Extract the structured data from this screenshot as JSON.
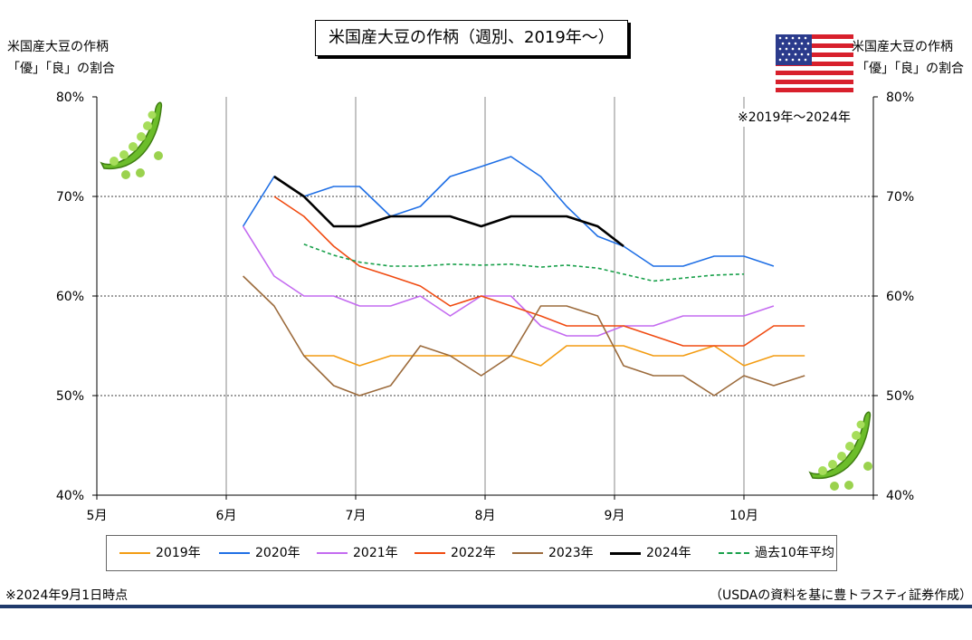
{
  "title": "米国産大豆の作柄（週別、2019年～）",
  "left_axis_label": [
    "米国産大豆の作柄",
    "「優」「良」の割合"
  ],
  "right_axis_label": [
    "米国産大豆の作柄",
    "「優」「良」の割合"
  ],
  "note_period": "※2019年～2024年",
  "footnote_left": "※2024年9月1日時点",
  "footnote_right": "（USDAの資料を基に豊トラスティ証券作成）",
  "colors": {
    "grid": "#000000",
    "month_grid": "#888888",
    "bottom_rule": "#1f3a6b"
  },
  "decorations": {
    "flag": "us-flag-icon",
    "pea_pods": [
      "pea-pod-icon",
      "pea-pod-icon"
    ]
  },
  "chart_data": {
    "type": "line",
    "ylim": [
      40,
      80
    ],
    "y_ticks": [
      "40%",
      "50%",
      "60%",
      "70%",
      "80%"
    ],
    "y_tick_values": [
      40,
      50,
      60,
      70,
      80
    ],
    "x_domain": [
      5,
      11
    ],
    "x_tick_labels": [
      "5月",
      "6月",
      "7月",
      "8月",
      "9月",
      "10月"
    ],
    "x_tick_values": [
      5,
      6,
      7,
      8,
      9,
      10
    ],
    "grid": true,
    "legend_position": "bottom",
    "series": [
      {
        "name": "2019年",
        "color": "#f39c12",
        "dash": false,
        "width": 1.6,
        "x": [
          6.6,
          6.83,
          7.03,
          7.27,
          7.5,
          7.73,
          7.97,
          8.2,
          8.43,
          8.63,
          8.87,
          9.07,
          9.3,
          9.53,
          9.77,
          10.0,
          10.23,
          10.47
        ],
        "y": [
          54,
          54,
          53,
          54,
          54,
          54,
          54,
          54,
          53,
          55,
          55,
          55,
          54,
          54,
          55,
          53,
          54,
          54
        ]
      },
      {
        "name": "2020年",
        "color": "#1f6fe5",
        "dash": false,
        "width": 1.6,
        "x": [
          6.13,
          6.37,
          6.6,
          6.83,
          7.03,
          7.27,
          7.5,
          7.73,
          7.97,
          8.2,
          8.43,
          8.63,
          8.87,
          9.07,
          9.3,
          9.53,
          9.77,
          10.0,
          10.23
        ],
        "y": [
          67,
          72,
          70,
          71,
          71,
          68,
          69,
          72,
          73,
          74,
          72,
          69,
          66,
          65,
          63,
          63,
          64,
          64,
          63
        ]
      },
      {
        "name": "2021年",
        "color": "#c46bf0",
        "dash": false,
        "width": 1.6,
        "x": [
          6.13,
          6.37,
          6.6,
          6.83,
          7.03,
          7.27,
          7.5,
          7.73,
          7.97,
          8.2,
          8.43,
          8.63,
          8.87,
          9.07,
          9.3,
          9.53,
          9.77,
          10.0,
          10.23
        ],
        "y": [
          67,
          62,
          60,
          60,
          59,
          59,
          60,
          58,
          60,
          60,
          57,
          56,
          56,
          57,
          57,
          58,
          58,
          58,
          59
        ]
      },
      {
        "name": "2022年",
        "color": "#f04a10",
        "dash": false,
        "width": 1.6,
        "x": [
          6.37,
          6.6,
          6.83,
          7.03,
          7.27,
          7.5,
          7.73,
          7.97,
          8.2,
          8.43,
          8.63,
          8.87,
          9.07,
          9.3,
          9.53,
          9.77,
          10.0,
          10.23,
          10.47
        ],
        "y": [
          70,
          68,
          65,
          63,
          62,
          61,
          59,
          60,
          59,
          58,
          57,
          57,
          57,
          56,
          55,
          55,
          55,
          57,
          57
        ]
      },
      {
        "name": "2023年",
        "color": "#9c6b3c",
        "dash": false,
        "width": 1.6,
        "x": [
          6.13,
          6.37,
          6.6,
          6.83,
          7.03,
          7.27,
          7.5,
          7.73,
          7.97,
          8.2,
          8.43,
          8.63,
          8.87,
          9.07,
          9.3,
          9.53,
          9.77,
          10.0,
          10.23,
          10.47
        ],
        "y": [
          62,
          59,
          54,
          51,
          50,
          51,
          55,
          54,
          52,
          54,
          59,
          59,
          58,
          53,
          52,
          52,
          50,
          52,
          51,
          52
        ]
      },
      {
        "name": "2024年",
        "color": "#000000",
        "dash": false,
        "width": 2.6,
        "x": [
          6.37,
          6.6,
          6.83,
          7.03,
          7.27,
          7.5,
          7.73,
          7.97,
          8.2,
          8.43,
          8.63,
          8.87,
          9.07
        ],
        "y": [
          72,
          70,
          67,
          67,
          68,
          68,
          68,
          67,
          68,
          68,
          68,
          67,
          65
        ]
      },
      {
        "name": "過去10年平均",
        "color": "#18a04a",
        "dash": true,
        "width": 1.6,
        "x": [
          6.6,
          6.83,
          7.03,
          7.27,
          7.5,
          7.73,
          7.97,
          8.2,
          8.43,
          8.63,
          8.87,
          9.07,
          9.3,
          9.53,
          9.77,
          10.0
        ],
        "y": [
          65.2,
          64.1,
          63.4,
          63.0,
          63.0,
          63.2,
          63.1,
          63.2,
          62.9,
          63.1,
          62.8,
          62.2,
          61.5,
          61.8,
          62.1,
          62.2
        ]
      }
    ]
  }
}
